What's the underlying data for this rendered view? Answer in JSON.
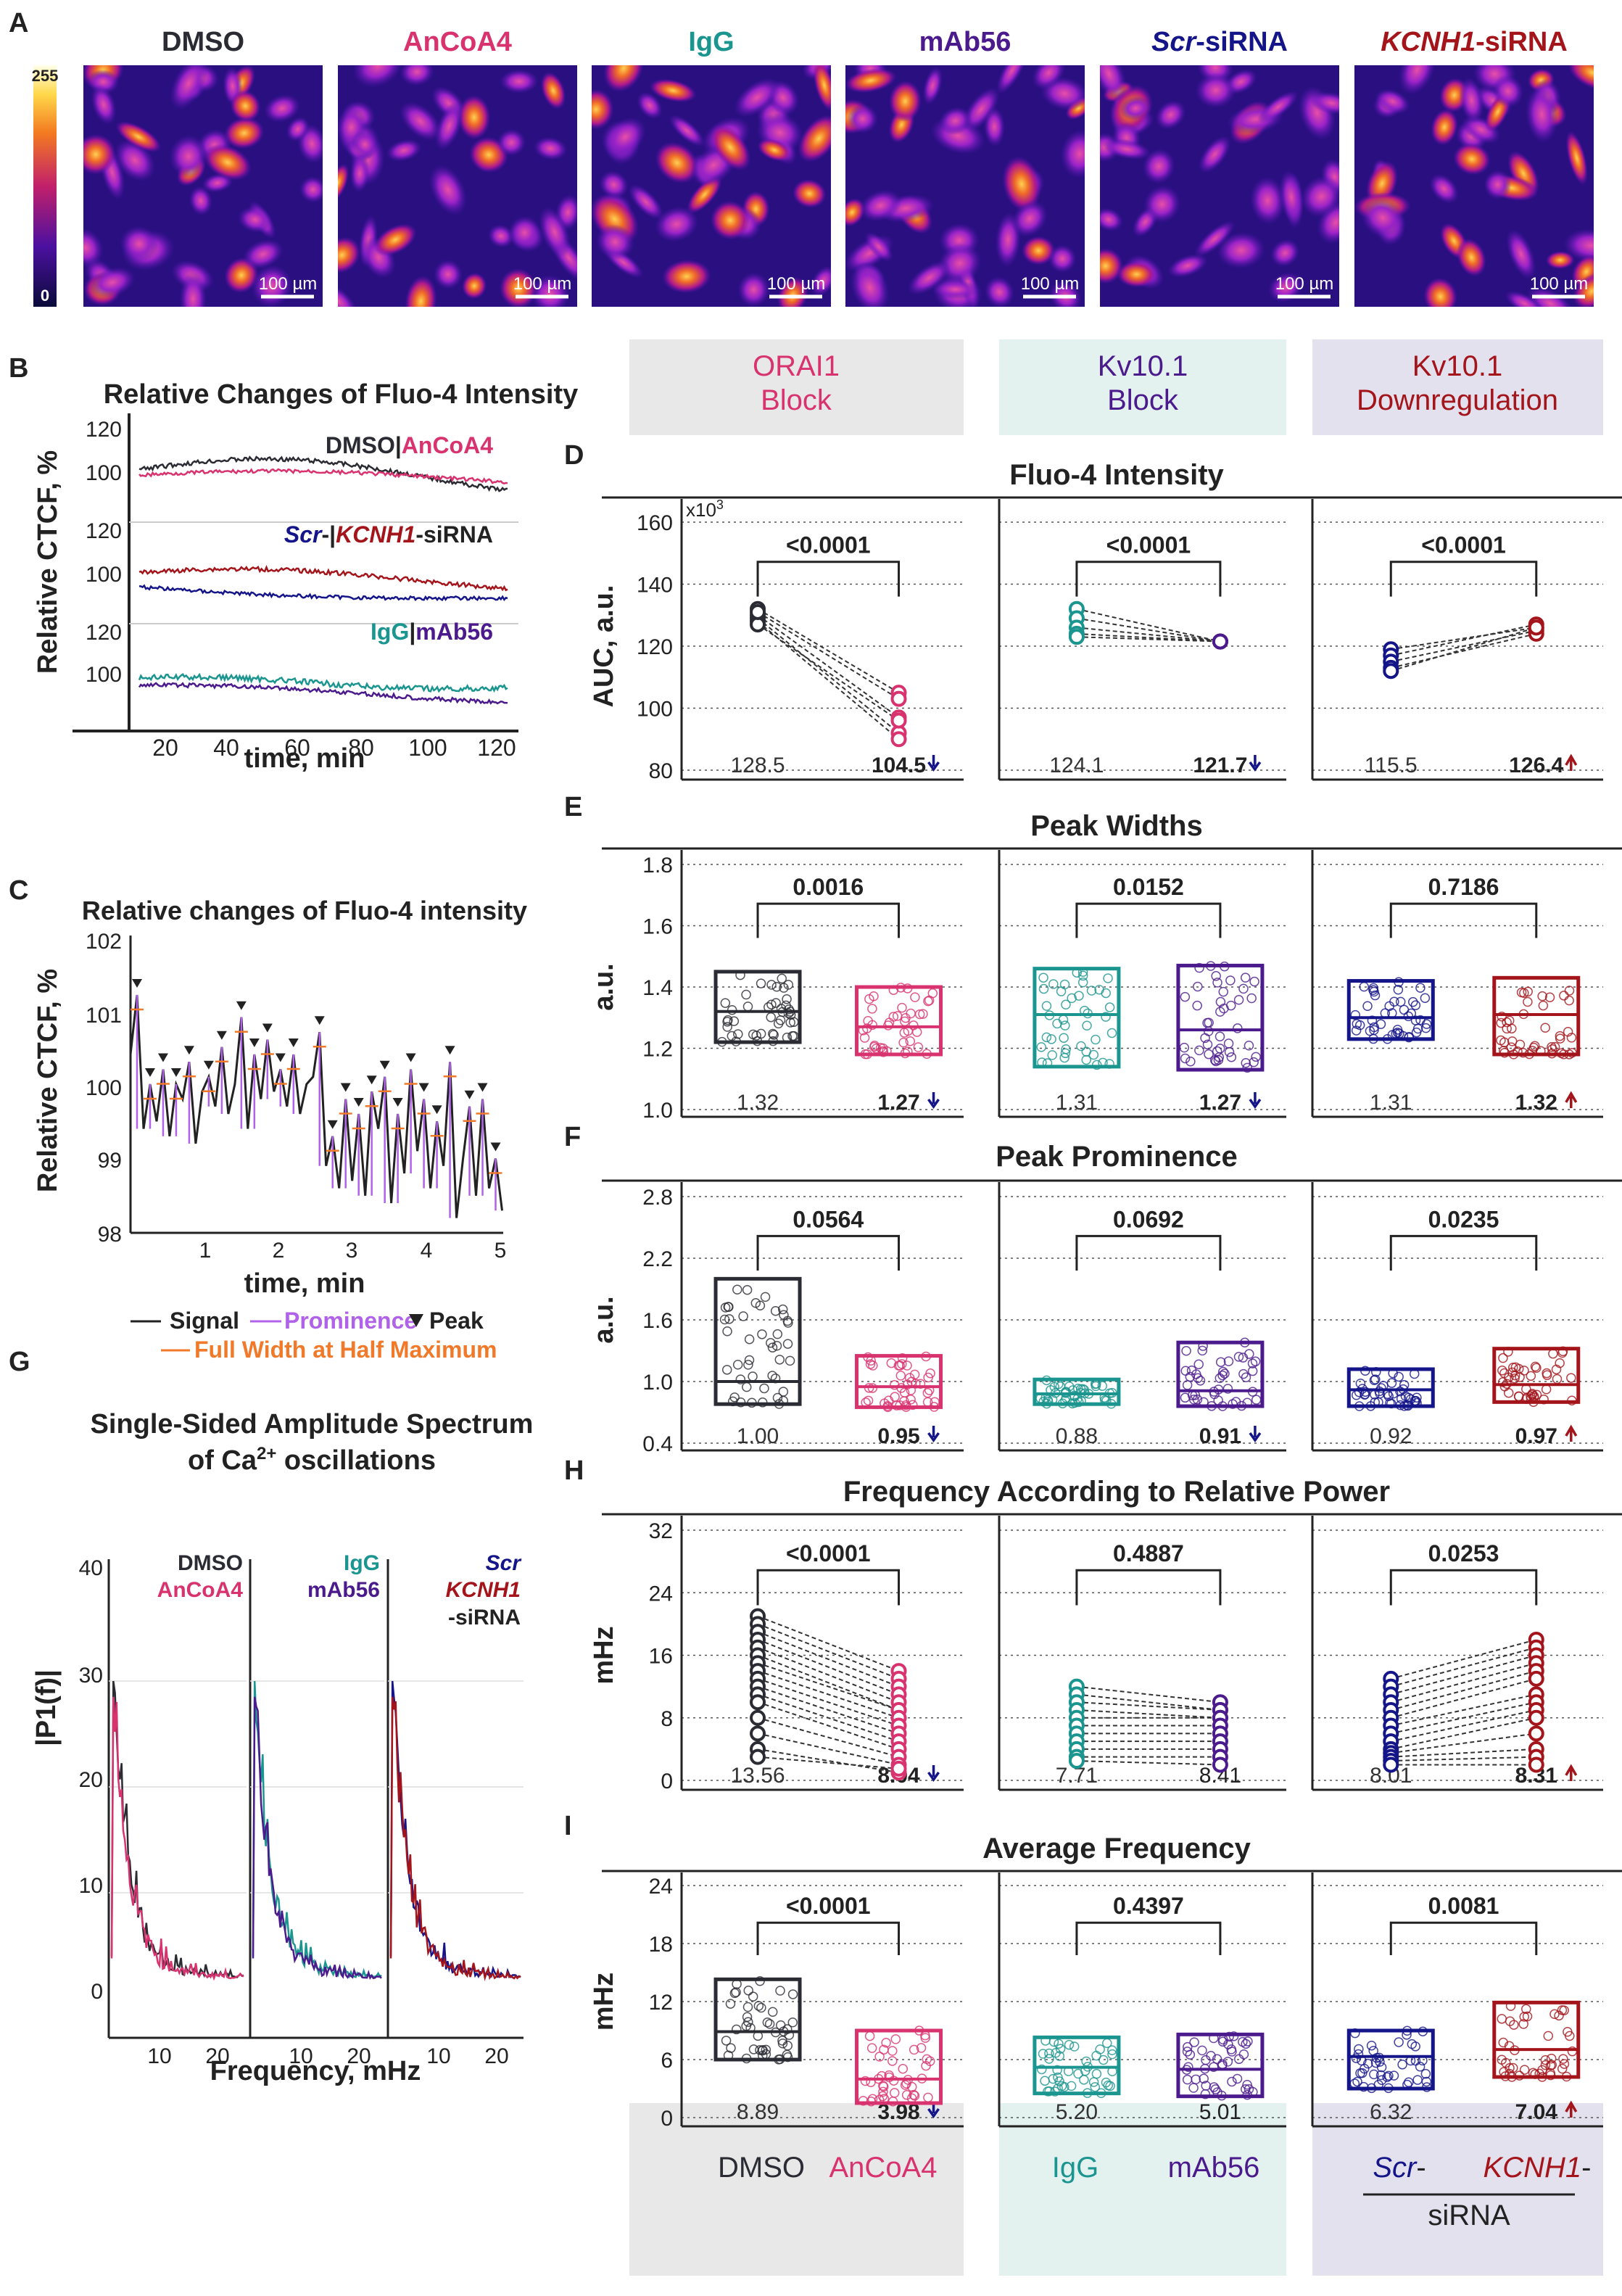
{
  "panel_letters": {
    "A": "A",
    "B": "B",
    "C": "C",
    "D": "D",
    "E": "E",
    "F": "F",
    "G": "G",
    "H": "H",
    "I": "I"
  },
  "colors": {
    "dmso": "#2b2b33",
    "ancoa4": "#d8336f",
    "igg": "#1b958f",
    "mab56": "#4b1a8c",
    "scr": "#15158a",
    "kcnh1": "#a3151b",
    "orange": "#f07a2a",
    "purple_prom": "#b062e8",
    "bg_gray": "#e8e8e8",
    "bg_teal": "#e3f1ef",
    "bg_lav": "#e3e1ee"
  },
  "panelA": {
    "colorbar_max": "255",
    "colorbar_min": "0",
    "scale_label": "100 µm",
    "labels": [
      {
        "text": "DMSO",
        "italic": "",
        "suffix": "",
        "color": "#2b2b33"
      },
      {
        "text": "AnCoA4",
        "italic": "",
        "suffix": "",
        "color": "#d8336f"
      },
      {
        "text": "IgG",
        "italic": "",
        "suffix": "",
        "color": "#1b958f"
      },
      {
        "text": "mAb56",
        "italic": "",
        "suffix": "",
        "color": "#4b1a8c"
      },
      {
        "text": "",
        "italic": "Scr",
        "suffix": "-siRNA",
        "color": "#15158a"
      },
      {
        "text": "",
        "italic": "KCNH1",
        "suffix": "-siRNA",
        "color": "#a3151b"
      }
    ]
  },
  "headers": [
    {
      "line1": "ORAI1",
      "line2": "Block",
      "color": "#d8336f"
    },
    {
      "line1": "Kv10.1",
      "line2": "Block",
      "color": "#4b1a8c"
    },
    {
      "line1": "Kv10.1",
      "line2": "Downregulation",
      "color": "#a3151b"
    }
  ],
  "panelB": {
    "title": "Relative Changes of Fluo-4 Intensity",
    "ylabel": "Relative CTCF, %",
    "xlabel": "time, min",
    "xticks": [
      "20",
      "40",
      "60",
      "80",
      "100",
      "120"
    ],
    "yticks": [
      "120",
      "100"
    ],
    "legend1": {
      "a": "DMSO",
      "sep": "|",
      "b": "AnCoA4"
    },
    "legend2": {
      "a": "Scr",
      "a2": "-|",
      "b": "KCNH1",
      "b2": "-siRNA"
    },
    "legend3": {
      "a": "IgG",
      "sep": "|",
      "b": "mAb56"
    }
  },
  "panelC": {
    "title": "Relative changes of Fluo-4 intensity",
    "ylabel": "Relative CTCF, %",
    "xlabel": "time, min",
    "yticks": [
      "102",
      "101",
      "100",
      "99",
      "98"
    ],
    "xticks": [
      "1",
      "2",
      "3",
      "4",
      "5"
    ],
    "legend_signal": "Signal",
    "legend_prominence": "Prominence",
    "legend_peak": "Peak",
    "legend_fwhm": "Full Width at Half Maximum"
  },
  "panelG": {
    "title1": "Single-Sided Amplitude Spectrum",
    "title2a": "of Ca",
    "title2sup": "2+",
    "title2b": " oscillations",
    "ylabel": "|P1(f)|",
    "xlabel": "Frequency, mHz",
    "yticks": [
      "40",
      "30",
      "20",
      "10",
      "0"
    ],
    "xticks": [
      "10",
      "20"
    ],
    "sub_labels": [
      {
        "l1": "DMSO",
        "l2": "AnCoA4",
        "l3": ""
      },
      {
        "l1": "IgG",
        "l2": "mAb56",
        "l3": ""
      },
      {
        "l1": "Scr",
        "l2": "KCNH1",
        "l3": "-siRNA"
      }
    ]
  },
  "chart_data": [
    {
      "id": "D",
      "type": "scatter",
      "title": "Fluo-4 Intensity",
      "ylabel": "AUC, a.u.",
      "multiplier": "x10",
      "multiplier_exp": "3",
      "ylim": [
        80,
        160
      ],
      "yticks": [
        "160",
        "140",
        "120",
        "100",
        "80"
      ],
      "groups": [
        {
          "pval": "<0.0001",
          "means": [
            "128.5",
            "104.5"
          ],
          "direction": "down"
        },
        {
          "pval": "<0.0001",
          "means": [
            "124.1",
            "121.7"
          ],
          "direction": "down"
        },
        {
          "pval": "<0.0001",
          "means": [
            "115.5",
            "126.4"
          ],
          "direction": "up"
        }
      ],
      "paired": [
        [
          [
            132,
            105
          ],
          [
            130,
            97
          ],
          [
            129,
            92
          ],
          [
            128,
            90
          ],
          [
            127,
            96
          ],
          [
            131,
            103
          ]
        ],
        [
          [
            132,
            121.5
          ],
          [
            129,
            121.5
          ],
          [
            126,
            121.5
          ],
          [
            124,
            121.5
          ],
          [
            123,
            121.5
          ]
        ],
        [
          [
            119,
            126
          ],
          [
            117,
            127
          ],
          [
            115,
            125
          ],
          [
            113,
            124
          ],
          [
            112,
            126
          ]
        ]
      ]
    },
    {
      "id": "E",
      "type": "box",
      "title": "Peak Widths",
      "ylabel": "a.u.",
      "ylim": [
        1.0,
        1.8
      ],
      "yticks": [
        "1.8",
        "1.6",
        "1.4",
        "1.2",
        "1.0"
      ],
      "groups": [
        {
          "pval": "0.0016",
          "means": [
            "1.32",
            "1.27"
          ],
          "direction": "down"
        },
        {
          "pval": "0.0152",
          "means": [
            "1.31",
            "1.27"
          ],
          "direction": "down"
        },
        {
          "pval": "0.7186",
          "means": [
            "1.31",
            "1.32"
          ],
          "direction": "up"
        }
      ],
      "boxes": [
        [
          1.22,
          1.32,
          1.45
        ],
        [
          1.18,
          1.27,
          1.4
        ],
        [
          1.14,
          1.31,
          1.46
        ],
        [
          1.13,
          1.26,
          1.47
        ],
        [
          1.23,
          1.3,
          1.42
        ],
        [
          1.18,
          1.31,
          1.43
        ]
      ]
    },
    {
      "id": "F",
      "type": "box",
      "title": "Peak Prominence",
      "ylabel": "a.u.",
      "ylim": [
        0.4,
        2.8
      ],
      "yticks": [
        "2.8",
        "2.2",
        "1.6",
        "1.0",
        "0.4"
      ],
      "groups": [
        {
          "pval": "0.0564",
          "means": [
            "1.00",
            "0.95"
          ],
          "direction": "down"
        },
        {
          "pval": "0.0692",
          "means": [
            "0.88",
            "0.91"
          ],
          "direction": "down"
        },
        {
          "pval": "0.0235",
          "means": [
            "0.92",
            "0.97"
          ],
          "direction": "up"
        }
      ],
      "boxes": [
        [
          0.78,
          1.0,
          2.0
        ],
        [
          0.75,
          0.95,
          1.25
        ],
        [
          0.78,
          0.88,
          1.02
        ],
        [
          0.76,
          0.91,
          1.38
        ],
        [
          0.76,
          0.92,
          1.12
        ],
        [
          0.8,
          0.97,
          1.32
        ]
      ]
    },
    {
      "id": "H",
      "type": "scatter",
      "title": "Frequency According to Relative Power",
      "ylabel": "mHz",
      "ylim": [
        0,
        32
      ],
      "yticks": [
        "32",
        "24",
        "16",
        "8",
        "0"
      ],
      "groups": [
        {
          "pval": "<0.0001",
          "means": [
            "13.56",
            "8.04"
          ],
          "direction": "down"
        },
        {
          "pval": "0.4887",
          "means": [
            "7.71",
            "8.41"
          ],
          "direction": "none"
        },
        {
          "pval": "0.0253",
          "means": [
            "8.01",
            "8.31"
          ],
          "direction": "up"
        }
      ],
      "paired": [
        [
          [
            21,
            14
          ],
          [
            20,
            13
          ],
          [
            19,
            12
          ],
          [
            18,
            11
          ],
          [
            17,
            10
          ],
          [
            16,
            9
          ],
          [
            15,
            9
          ],
          [
            14,
            8
          ],
          [
            13,
            7
          ],
          [
            12,
            6
          ],
          [
            11,
            5
          ],
          [
            10,
            4
          ],
          [
            8,
            3
          ],
          [
            6,
            2
          ],
          [
            4,
            1
          ],
          [
            3,
            1.5
          ]
        ],
        [
          [
            12,
            10
          ],
          [
            11,
            9
          ],
          [
            10,
            9
          ],
          [
            9,
            8
          ],
          [
            8,
            8
          ],
          [
            7,
            7
          ],
          [
            6,
            6
          ],
          [
            5,
            5
          ],
          [
            4,
            4
          ],
          [
            3,
            3
          ],
          [
            2.5,
            2
          ]
        ],
        [
          [
            13,
            18
          ],
          [
            12,
            17
          ],
          [
            11,
            16
          ],
          [
            10,
            15
          ],
          [
            9,
            14
          ],
          [
            8,
            13
          ],
          [
            7,
            11
          ],
          [
            6,
            10
          ],
          [
            5,
            9
          ],
          [
            4,
            8
          ],
          [
            3.5,
            6
          ],
          [
            3,
            4
          ],
          [
            2.5,
            3
          ],
          [
            2,
            2
          ]
        ]
      ]
    },
    {
      "id": "I",
      "type": "box",
      "title": "Average Frequency",
      "ylabel": "mHz",
      "ylim": [
        0,
        24
      ],
      "yticks": [
        "24",
        "18",
        "12",
        "6",
        "0"
      ],
      "groups": [
        {
          "pval": "<0.0001",
          "means": [
            "8.89",
            "3.98"
          ],
          "direction": "down"
        },
        {
          "pval": "0.4397",
          "means": [
            "5.20",
            "5.01"
          ],
          "direction": "none"
        },
        {
          "pval": "0.0081",
          "means": [
            "6.32",
            "7.04"
          ],
          "direction": "up"
        }
      ],
      "boxes": [
        [
          6.0,
          8.89,
          14.3
        ],
        [
          1.5,
          3.98,
          9.0
        ],
        [
          2.5,
          5.2,
          8.3
        ],
        [
          2.2,
          5.0,
          8.6
        ],
        [
          3.0,
          6.32,
          9.0
        ],
        [
          4.2,
          7.04,
          11.9
        ]
      ]
    }
  ],
  "footer": {
    "g1a": "DMSO",
    "g1b": "AnCoA4",
    "g2a": "IgG",
    "g2b": "mAb56",
    "g3a": "Scr",
    "g3a_suffix": "-",
    "g3b": "KCNH1",
    "g3b_suffix": "-",
    "g3c": "siRNA"
  }
}
